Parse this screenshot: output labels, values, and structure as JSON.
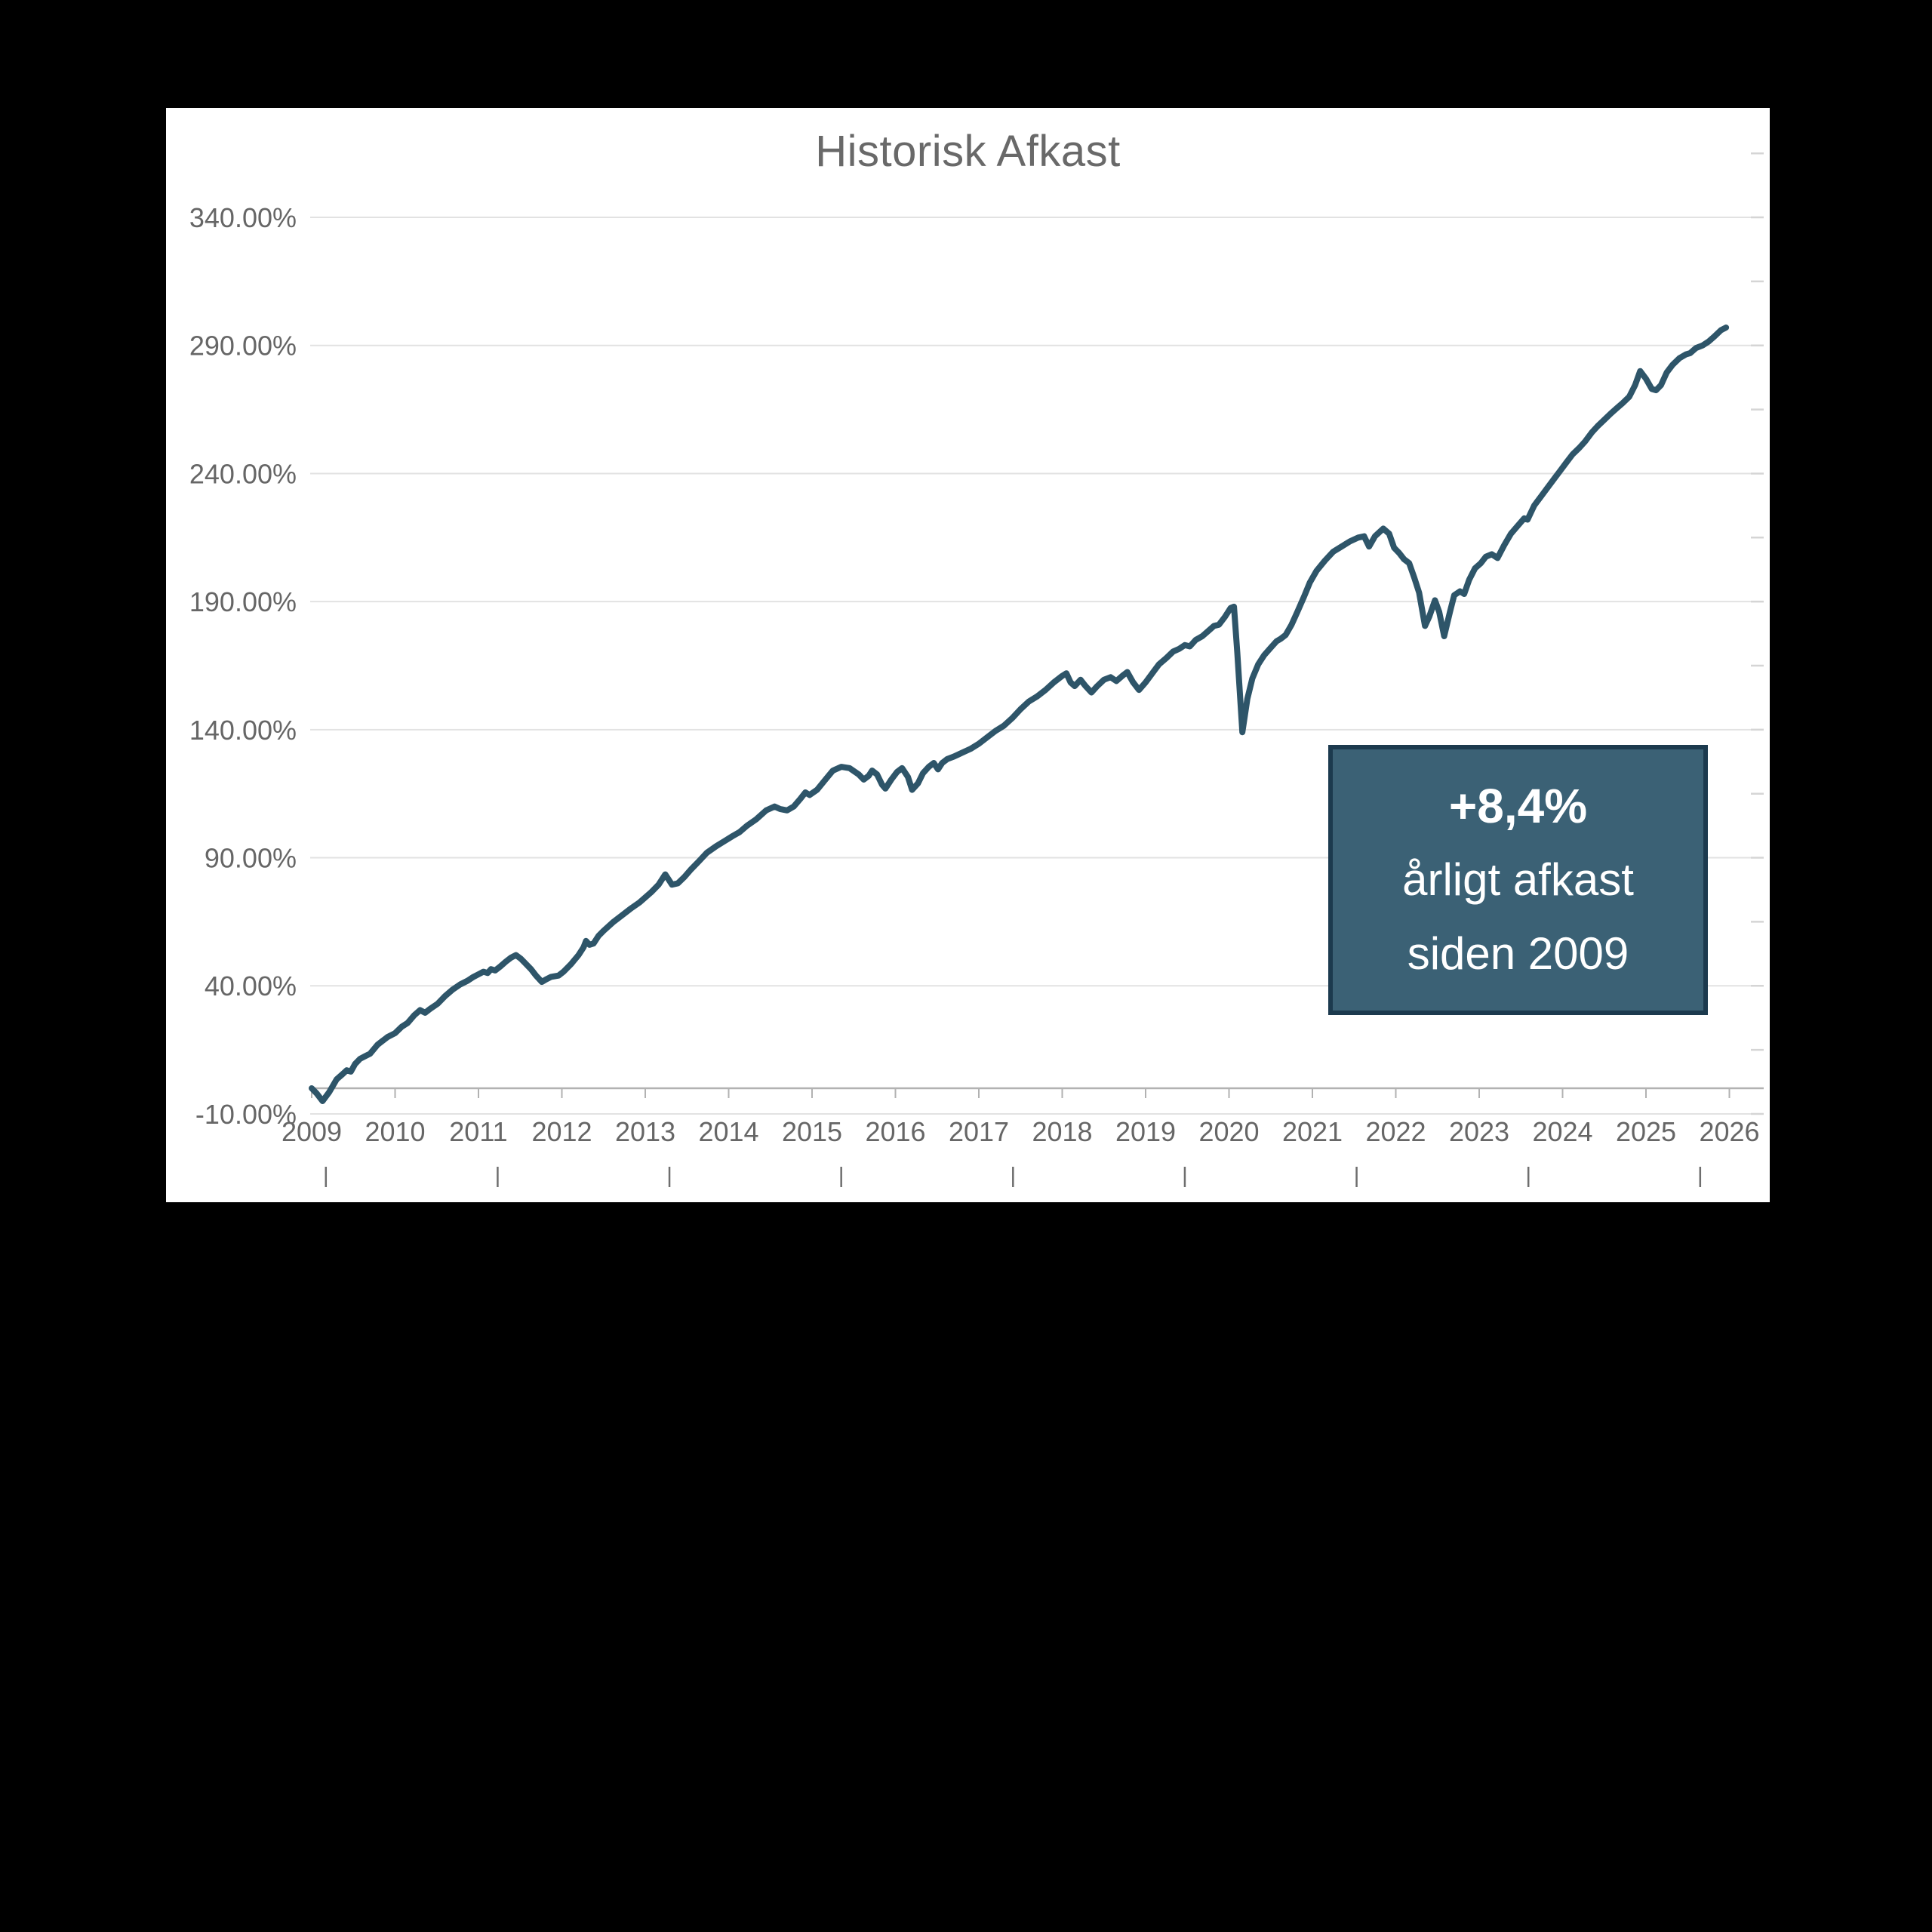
{
  "page": {
    "background": "#000000"
  },
  "title": "Historisk Afkast",
  "callout": {
    "line1": "+8,4%",
    "line2": "årligt afkast",
    "line3": "siden 2009"
  },
  "chart_data": {
    "type": "line",
    "title": "Historisk Afkast",
    "xlabel": "",
    "ylabel": "",
    "grid": true,
    "legend_position": "none",
    "x_range": [
      2009,
      2026.4
    ],
    "y_range": [
      -10,
      340
    ],
    "colors": {
      "line": "#2e5569",
      "gridline": "#e2e2e2",
      "zero_axis": "#b2b2b2",
      "axis_tick": "#b2b2b2",
      "right_tick": "#d5d5d5",
      "outer_tick": "#6e6e6e",
      "axis_text": "#666666",
      "title_text": "#696969",
      "panel_bg": "#ffffff",
      "annotation_bg": "#3b6175",
      "annotation_border": "#1c3a4e",
      "annotation_text": "#ffffff"
    },
    "y_ticks": [
      {
        "label": "340.00%",
        "value": 340
      },
      {
        "label": "290.00%",
        "value": 290
      },
      {
        "label": "240.00%",
        "value": 240
      },
      {
        "label": "190.00%",
        "value": 190
      },
      {
        "label": "140.00%",
        "value": 140
      },
      {
        "label": "90.00%",
        "value": 90
      },
      {
        "label": "40.00%",
        "value": 40
      },
      {
        "label": "-10.00%",
        "value": -10
      }
    ],
    "x_ticks": [
      {
        "label": "2009",
        "value": 2009
      },
      {
        "label": "2010",
        "value": 2010
      },
      {
        "label": "2011",
        "value": 2011
      },
      {
        "label": "2012",
        "value": 2012
      },
      {
        "label": "2013",
        "value": 2013
      },
      {
        "label": "2014",
        "value": 2014
      },
      {
        "label": "2015",
        "value": 2015
      },
      {
        "label": "2016",
        "value": 2016
      },
      {
        "label": "2017",
        "value": 2017
      },
      {
        "label": "2018",
        "value": 2018
      },
      {
        "label": "2019",
        "value": 2019
      },
      {
        "label": "2020",
        "value": 2020
      },
      {
        "label": "2021",
        "value": 2021
      },
      {
        "label": "2022",
        "value": 2022
      },
      {
        "label": "2023",
        "value": 2023
      },
      {
        "label": "2024",
        "value": 2024
      },
      {
        "label": "2025",
        "value": 2025
      },
      {
        "label": "2026",
        "value": 2026
      }
    ],
    "annotation": {
      "lines": [
        "+8,4%",
        "årligt afkast",
        "siden 2009"
      ]
    },
    "series": [
      {
        "color": "#2e5569",
        "points": [
          [
            2009.0,
            0
          ],
          [
            2009.06,
            -2
          ],
          [
            2009.13,
            -5
          ],
          [
            2009.21,
            -1.5
          ],
          [
            2009.3,
            3.5
          ],
          [
            2009.37,
            5.5
          ],
          [
            2009.42,
            7
          ],
          [
            2009.47,
            6.5
          ],
          [
            2009.52,
            9.5
          ],
          [
            2009.58,
            11.5
          ],
          [
            2009.64,
            12.5
          ],
          [
            2009.7,
            13.5
          ],
          [
            2009.79,
            17
          ],
          [
            2009.85,
            18.5
          ],
          [
            2009.91,
            20
          ],
          [
            2010.0,
            21.5
          ],
          [
            2010.08,
            24
          ],
          [
            2010.15,
            25.5
          ],
          [
            2010.23,
            28.5
          ],
          [
            2010.3,
            30.5
          ],
          [
            2010.36,
            29.5
          ],
          [
            2010.42,
            31
          ],
          [
            2010.51,
            33
          ],
          [
            2010.6,
            36
          ],
          [
            2010.69,
            38.5
          ],
          [
            2010.78,
            40.5
          ],
          [
            2010.87,
            42
          ],
          [
            2010.94,
            43.5
          ],
          [
            2011.0,
            44.5
          ],
          [
            2011.06,
            45.5
          ],
          [
            2011.11,
            45
          ],
          [
            2011.15,
            46.5
          ],
          [
            2011.2,
            46
          ],
          [
            2011.26,
            47.5
          ],
          [
            2011.33,
            49.5
          ],
          [
            2011.39,
            51
          ],
          [
            2011.45,
            52
          ],
          [
            2011.51,
            50.5
          ],
          [
            2011.57,
            48.5
          ],
          [
            2011.63,
            46.5
          ],
          [
            2011.69,
            44
          ],
          [
            2011.76,
            41.5
          ],
          [
            2011.81,
            42.5
          ],
          [
            2011.87,
            43.5
          ],
          [
            2011.96,
            44
          ],
          [
            2012.02,
            45.5
          ],
          [
            2012.11,
            48.5
          ],
          [
            2012.2,
            52
          ],
          [
            2012.26,
            55
          ],
          [
            2012.29,
            57.5
          ],
          [
            2012.33,
            56
          ],
          [
            2012.38,
            56.5
          ],
          [
            2012.44,
            59.5
          ],
          [
            2012.5,
            61.5
          ],
          [
            2012.62,
            65
          ],
          [
            2012.72,
            67.5
          ],
          [
            2012.82,
            70
          ],
          [
            2012.93,
            72.5
          ],
          [
            2013.0,
            74.5
          ],
          [
            2013.07,
            76.5
          ],
          [
            2013.16,
            79.5
          ],
          [
            2013.24,
            83.5
          ],
          [
            2013.32,
            79.5
          ],
          [
            2013.39,
            80
          ],
          [
            2013.47,
            82.5
          ],
          [
            2013.55,
            85.5
          ],
          [
            2013.64,
            88.5
          ],
          [
            2013.74,
            92
          ],
          [
            2013.85,
            94.5
          ],
          [
            2013.95,
            96.5
          ],
          [
            2014.05,
            98.5
          ],
          [
            2014.13,
            100
          ],
          [
            2014.22,
            102.5
          ],
          [
            2014.33,
            105
          ],
          [
            2014.45,
            108.5
          ],
          [
            2014.55,
            110
          ],
          [
            2014.62,
            109
          ],
          [
            2014.7,
            108.5
          ],
          [
            2014.78,
            110
          ],
          [
            2014.86,
            113
          ],
          [
            2014.92,
            115.5
          ],
          [
            2014.97,
            114.5
          ],
          [
            2015.06,
            116.5
          ],
          [
            2015.16,
            120.5
          ],
          [
            2015.25,
            124
          ],
          [
            2015.35,
            125.5
          ],
          [
            2015.45,
            125
          ],
          [
            2015.56,
            122.5
          ],
          [
            2015.62,
            120.5
          ],
          [
            2015.68,
            122
          ],
          [
            2015.72,
            124
          ],
          [
            2015.78,
            122.5
          ],
          [
            2015.84,
            118.5
          ],
          [
            2015.88,
            117
          ],
          [
            2015.95,
            120.5
          ],
          [
            2016.02,
            123.5
          ],
          [
            2016.08,
            125
          ],
          [
            2016.15,
            121.5
          ],
          [
            2016.2,
            116.5
          ],
          [
            2016.27,
            119
          ],
          [
            2016.33,
            123
          ],
          [
            2016.4,
            125.5
          ],
          [
            2016.46,
            127
          ],
          [
            2016.51,
            124.5
          ],
          [
            2016.56,
            127
          ],
          [
            2016.62,
            128.5
          ],
          [
            2016.7,
            129.5
          ],
          [
            2016.8,
            131
          ],
          [
            2016.9,
            132.5
          ],
          [
            2017.0,
            134.5
          ],
          [
            2017.1,
            137
          ],
          [
            2017.2,
            139.5
          ],
          [
            2017.3,
            141.5
          ],
          [
            2017.4,
            144.5
          ],
          [
            2017.5,
            148
          ],
          [
            2017.6,
            151
          ],
          [
            2017.7,
            153
          ],
          [
            2017.8,
            155.5
          ],
          [
            2017.9,
            158.5
          ],
          [
            2018.0,
            161
          ],
          [
            2018.05,
            162
          ],
          [
            2018.1,
            158.5
          ],
          [
            2018.15,
            157
          ],
          [
            2018.22,
            159.5
          ],
          [
            2018.28,
            157
          ],
          [
            2018.35,
            154.5
          ],
          [
            2018.42,
            157
          ],
          [
            2018.5,
            159.5
          ],
          [
            2018.58,
            160.5
          ],
          [
            2018.65,
            159
          ],
          [
            2018.72,
            161
          ],
          [
            2018.78,
            162.5
          ],
          [
            2018.85,
            158.5
          ],
          [
            2018.92,
            155.5
          ],
          [
            2019.0,
            158.5
          ],
          [
            2019.08,
            162
          ],
          [
            2019.16,
            165.5
          ],
          [
            2019.25,
            168
          ],
          [
            2019.33,
            170.5
          ],
          [
            2019.4,
            171.5
          ],
          [
            2019.47,
            173
          ],
          [
            2019.53,
            172.5
          ],
          [
            2019.6,
            175
          ],
          [
            2019.68,
            176.5
          ],
          [
            2019.75,
            178.5
          ],
          [
            2019.82,
            180.5
          ],
          [
            2019.88,
            181
          ],
          [
            2019.95,
            184
          ],
          [
            2020.02,
            187.5
          ],
          [
            2020.06,
            188
          ],
          [
            2020.1,
            170
          ],
          [
            2020.16,
            139
          ],
          [
            2020.22,
            152
          ],
          [
            2020.28,
            160
          ],
          [
            2020.35,
            165.5
          ],
          [
            2020.42,
            169
          ],
          [
            2020.5,
            172
          ],
          [
            2020.57,
            174.5
          ],
          [
            2020.62,
            175.5
          ],
          [
            2020.68,
            177
          ],
          [
            2020.75,
            181
          ],
          [
            2020.82,
            186
          ],
          [
            2020.9,
            192
          ],
          [
            2020.97,
            197.5
          ],
          [
            2021.05,
            202
          ],
          [
            2021.15,
            206
          ],
          [
            2021.25,
            209.5
          ],
          [
            2021.35,
            211.5
          ],
          [
            2021.45,
            213.5
          ],
          [
            2021.55,
            215
          ],
          [
            2021.62,
            215.5
          ],
          [
            2021.68,
            211.5
          ],
          [
            2021.75,
            215.5
          ],
          [
            2021.85,
            218.5
          ],
          [
            2021.92,
            216.5
          ],
          [
            2021.98,
            211
          ],
          [
            2022.04,
            209
          ],
          [
            2022.1,
            206.5
          ],
          [
            2022.16,
            205
          ],
          [
            2022.22,
            199.5
          ],
          [
            2022.28,
            193.5
          ],
          [
            2022.35,
            180.5
          ],
          [
            2022.4,
            184
          ],
          [
            2022.47,
            190.5
          ],
          [
            2022.52,
            186
          ],
          [
            2022.58,
            176.5
          ],
          [
            2022.65,
            186
          ],
          [
            2022.7,
            192.5
          ],
          [
            2022.77,
            194
          ],
          [
            2022.82,
            193
          ],
          [
            2022.88,
            198.5
          ],
          [
            2022.95,
            203
          ],
          [
            2023.02,
            205
          ],
          [
            2023.08,
            207.5
          ],
          [
            2023.15,
            208.5
          ],
          [
            2023.22,
            207
          ],
          [
            2023.3,
            212
          ],
          [
            2023.38,
            216.5
          ],
          [
            2023.46,
            219.5
          ],
          [
            2023.54,
            222.5
          ],
          [
            2023.58,
            222
          ],
          [
            2023.66,
            227.5
          ],
          [
            2023.74,
            231
          ],
          [
            2023.82,
            234.5
          ],
          [
            2023.9,
            238
          ],
          [
            2023.97,
            241
          ],
          [
            2024.05,
            244.5
          ],
          [
            2024.12,
            247.5
          ],
          [
            2024.2,
            250
          ],
          [
            2024.27,
            252.5
          ],
          [
            2024.35,
            256
          ],
          [
            2024.42,
            258.5
          ],
          [
            2024.5,
            261
          ],
          [
            2024.58,
            263.5
          ],
          [
            2024.65,
            265.5
          ],
          [
            2024.72,
            267.5
          ],
          [
            2024.8,
            270
          ],
          [
            2024.87,
            274.5
          ],
          [
            2024.93,
            280
          ],
          [
            2025.0,
            277
          ],
          [
            2025.07,
            273
          ],
          [
            2025.12,
            272.5
          ],
          [
            2025.18,
            274.5
          ],
          [
            2025.25,
            279.5
          ],
          [
            2025.32,
            282.5
          ],
          [
            2025.4,
            285
          ],
          [
            2025.48,
            286.5
          ],
          [
            2025.53,
            287
          ],
          [
            2025.6,
            289
          ],
          [
            2025.68,
            290
          ],
          [
            2025.75,
            291.5
          ],
          [
            2025.82,
            293.5
          ],
          [
            2025.9,
            296
          ],
          [
            2025.96,
            297
          ]
        ]
      }
    ]
  }
}
